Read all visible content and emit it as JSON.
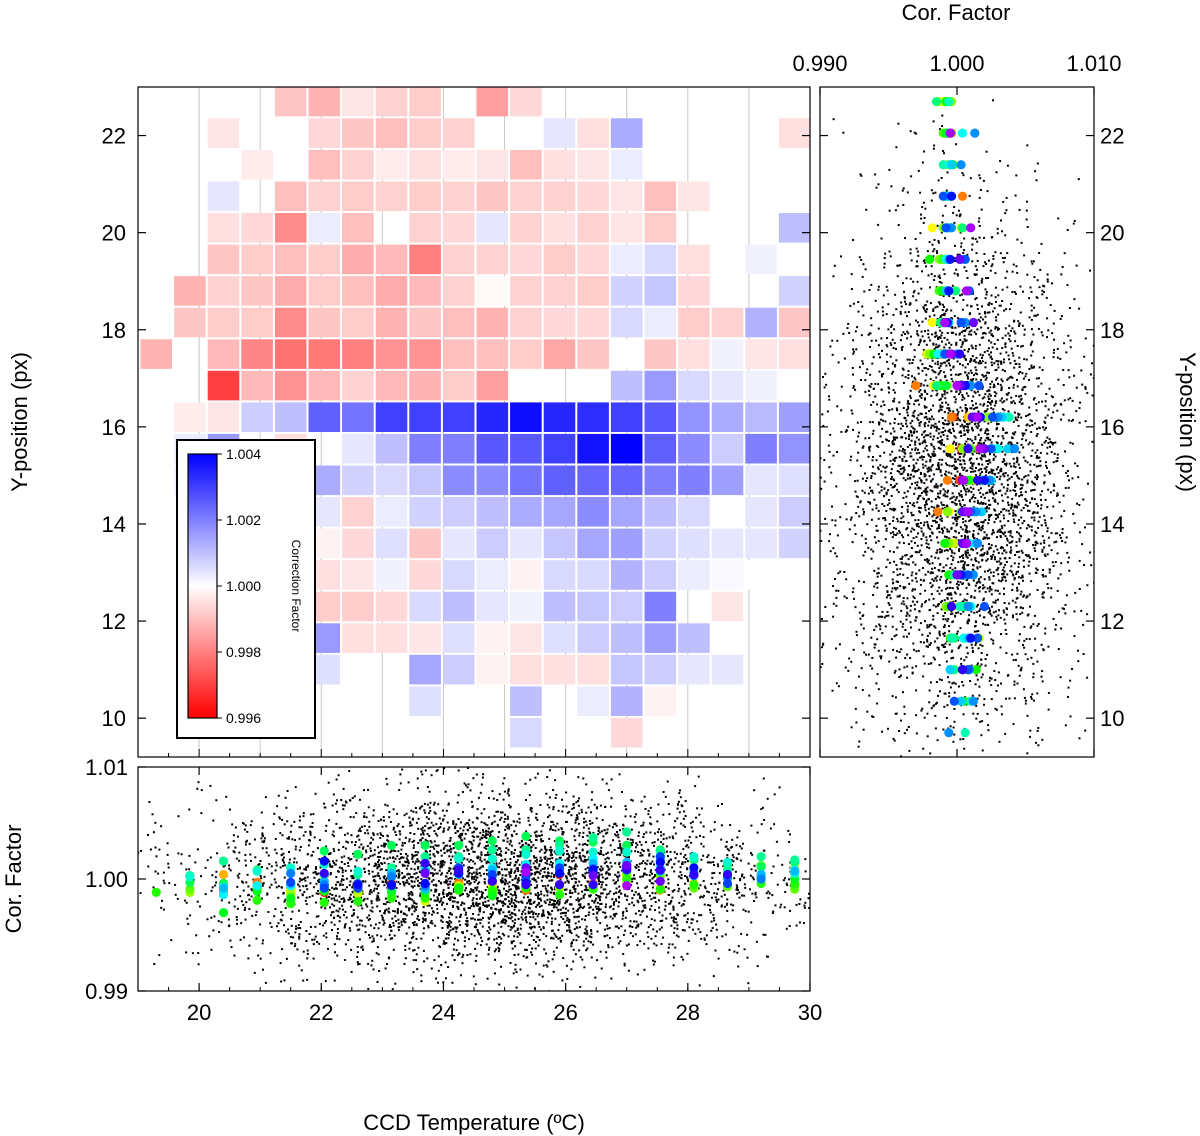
{
  "chart_data": [
    {
      "type": "heatmap",
      "xlabel": "CCD Temperature (ºC)",
      "ylabel": "Y-position (px)",
      "xlim": [
        19,
        30
      ],
      "ylim": [
        9.2,
        23
      ],
      "x_ticks": [
        "20",
        "22",
        "24",
        "26",
        "28",
        "30"
      ],
      "y_ticks": [
        "10",
        "12",
        "14",
        "16",
        "18",
        "20",
        "22"
      ],
      "x_centers": [
        19.3,
        19.85,
        20.4,
        20.95,
        21.5,
        22.05,
        22.6,
        23.15,
        23.7,
        24.25,
        24.8,
        25.35,
        25.9,
        26.45,
        27.0,
        27.55,
        28.1,
        28.65,
        29.2,
        29.75
      ],
      "y_centers": [
        22.7,
        22.05,
        21.4,
        20.75,
        20.1,
        19.45,
        18.8,
        18.15,
        17.5,
        16.85,
        16.2,
        15.55,
        14.9,
        14.25,
        13.6,
        12.95,
        12.3,
        11.65,
        11.0,
        10.35,
        9.7
      ],
      "values": [
        [
          null,
          null,
          null,
          null,
          0.9991,
          0.9988,
          0.9996,
          0.9993,
          0.9992,
          null,
          0.9985,
          0.9994,
          null,
          null,
          null,
          null,
          null,
          null,
          null,
          null
        ],
        [
          null,
          null,
          0.9996,
          null,
          null,
          0.9994,
          0.9991,
          0.999,
          0.9992,
          0.9993,
          null,
          null,
          1.0004,
          0.9995,
          1.0013,
          null,
          null,
          null,
          null,
          0.9995
        ],
        [
          null,
          null,
          null,
          0.9997,
          null,
          0.999,
          0.9993,
          0.9997,
          0.9995,
          0.9997,
          0.9996,
          0.999,
          0.9995,
          0.9996,
          1.0003,
          null,
          null,
          null,
          null,
          null
        ],
        [
          null,
          null,
          1.0004,
          null,
          0.999,
          0.9993,
          0.9992,
          0.9993,
          0.9992,
          0.9993,
          0.9991,
          0.9993,
          0.9993,
          0.9994,
          0.9996,
          0.999,
          0.9996,
          null,
          null,
          null
        ],
        [
          null,
          null,
          0.9995,
          0.9994,
          0.9982,
          1.0003,
          0.999,
          null,
          0.9993,
          0.9994,
          1.0004,
          0.9993,
          0.9995,
          0.9993,
          0.9996,
          0.9992,
          null,
          null,
          null,
          1.001
        ],
        [
          null,
          null,
          0.9991,
          0.9992,
          0.999,
          0.9992,
          0.9987,
          0.9989,
          0.998,
          0.9993,
          0.9993,
          0.9994,
          0.9992,
          0.9994,
          1.0003,
          1.0006,
          0.9995,
          null,
          1.0002,
          null
        ],
        [
          null,
          0.9988,
          0.9993,
          0.9991,
          0.9987,
          0.9992,
          0.999,
          0.9987,
          0.9989,
          0.9993,
          0.9999,
          0.9993,
          0.9993,
          0.9992,
          1.0007,
          1.0009,
          0.9994,
          null,
          null,
          1.0007
        ],
        [
          null,
          0.9991,
          0.9992,
          0.9992,
          0.9982,
          0.9991,
          0.9992,
          0.9988,
          0.9991,
          0.999,
          0.9988,
          0.9993,
          0.9994,
          0.9994,
          1.0006,
          1.0003,
          0.9992,
          0.9993,
          1.0012,
          0.9991
        ],
        [
          0.9988,
          null,
          0.9989,
          0.9981,
          0.9978,
          0.9979,
          0.998,
          0.9983,
          0.9983,
          0.999,
          0.999,
          0.9992,
          0.9986,
          0.9991,
          1.0,
          0.9991,
          0.9995,
          1.0002,
          0.9996,
          0.9995
        ],
        [
          null,
          null,
          0.997,
          0.9989,
          0.9983,
          0.9989,
          0.9993,
          0.9989,
          0.9988,
          0.9992,
          0.9985,
          null,
          null,
          null,
          1.001,
          1.0016,
          1.0006,
          1.0004,
          1.0002,
          1.0
        ],
        [
          null,
          0.9997,
          0.9996,
          1.0008,
          1.001,
          1.0025,
          1.0022,
          1.003,
          1.003,
          1.003,
          1.0034,
          1.0038,
          1.0034,
          1.0033,
          1.003,
          1.0026,
          1.0017,
          1.0013,
          1.0011,
          1.0015
        ],
        [
          null,
          1.0003,
          1.0016,
          null,
          0.9995,
          null,
          1.0004,
          1.001,
          1.002,
          1.002,
          1.0026,
          1.0026,
          1.003,
          1.0037,
          1.0042,
          1.0025,
          1.0018,
          1.0008,
          1.002,
          1.0017
        ],
        [
          null,
          1.0002,
          0.9993,
          1.0007,
          1.001,
          1.0013,
          1.0007,
          1.0006,
          1.0009,
          1.0018,
          1.0018,
          1.0022,
          1.0025,
          1.0024,
          1.0024,
          1.002,
          1.002,
          1.0015,
          1.0004,
          1.0005
        ],
        [
          null,
          null,
          0.9986,
          0.9994,
          0.9994,
          1.0004,
          0.9993,
          1.0003,
          1.0007,
          1.0008,
          1.001,
          1.0013,
          1.0014,
          1.0018,
          1.0014,
          1.001,
          1.0006,
          null,
          1.0004,
          1.0008
        ],
        [
          null,
          null,
          0.9992,
          null,
          0.9996,
          0.9998,
          0.9994,
          1.0005,
          0.9991,
          1.0004,
          1.0008,
          1.0004,
          1.0009,
          1.0014,
          1.0015,
          1.0007,
          1.0005,
          1.0004,
          1.0004,
          1.0007
        ],
        [
          null,
          null,
          null,
          null,
          1.0005,
          0.9995,
          0.9996,
          1.0002,
          0.9994,
          1.0006,
          1.0003,
          0.9998,
          1.0006,
          1.0006,
          1.0012,
          1.0008,
          1.0003,
          1.0001,
          1.0,
          null
        ],
        [
          null,
          null,
          null,
          null,
          0.9997,
          0.9992,
          0.9992,
          0.9994,
          1.0006,
          1.001,
          1.0004,
          1.0002,
          1.001,
          1.0009,
          1.0008,
          1.002,
          null,
          0.9996,
          null,
          null
        ],
        [
          null,
          null,
          null,
          null,
          null,
          1.0016,
          0.9995,
          0.9995,
          0.9996,
          1.0005,
          0.9998,
          0.9996,
          1.0005,
          1.0008,
          1.001,
          1.0015,
          1.001,
          null,
          null,
          null
        ],
        [
          null,
          null,
          null,
          null,
          null,
          1.0005,
          null,
          null,
          1.0014,
          1.0008,
          0.9998,
          0.9995,
          0.9995,
          0.9995,
          1.0009,
          1.0008,
          1.0004,
          1.0004,
          null,
          null
        ],
        [
          null,
          null,
          null,
          null,
          null,
          null,
          null,
          null,
          1.0005,
          null,
          null,
          1.001,
          null,
          1.0003,
          1.0012,
          0.9998,
          null,
          null,
          null,
          null
        ],
        [
          null,
          null,
          null,
          null,
          null,
          null,
          null,
          null,
          null,
          null,
          null,
          1.0006,
          null,
          null,
          0.9994,
          null,
          null,
          null,
          null,
          null
        ]
      ]
    },
    {
      "type": "scatter",
      "xlabel": "Cor. Factor",
      "ylabel": "Y-position (px)",
      "xlim": [
        0.99,
        1.01
      ],
      "ylim": [
        9.2,
        23
      ],
      "x_ticks": [
        "0.990",
        "1.000",
        "1.010"
      ],
      "y_ticks": [
        "10",
        "12",
        "14",
        "16",
        "18",
        "20",
        "22"
      ]
    },
    {
      "type": "scatter",
      "xlabel": "CCD Temperature (ºC)",
      "ylabel": "Cor. Factor",
      "xlim": [
        19,
        30
      ],
      "ylim": [
        0.99,
        1.01
      ],
      "x_ticks": [
        "20",
        "22",
        "24",
        "26",
        "28",
        "30"
      ],
      "y_ticks": [
        "0.99",
        "1.00",
        "1.01"
      ]
    }
  ],
  "colorbar": {
    "label": "Correction Factor",
    "min": 0.996,
    "max": 1.004,
    "ticks": [
      "1.004",
      "1.002",
      "1.000",
      "0.998",
      "0.996"
    ],
    "low_color": "#ff0000",
    "mid_color": "#ffffff",
    "high_color": "#0000ff"
  }
}
